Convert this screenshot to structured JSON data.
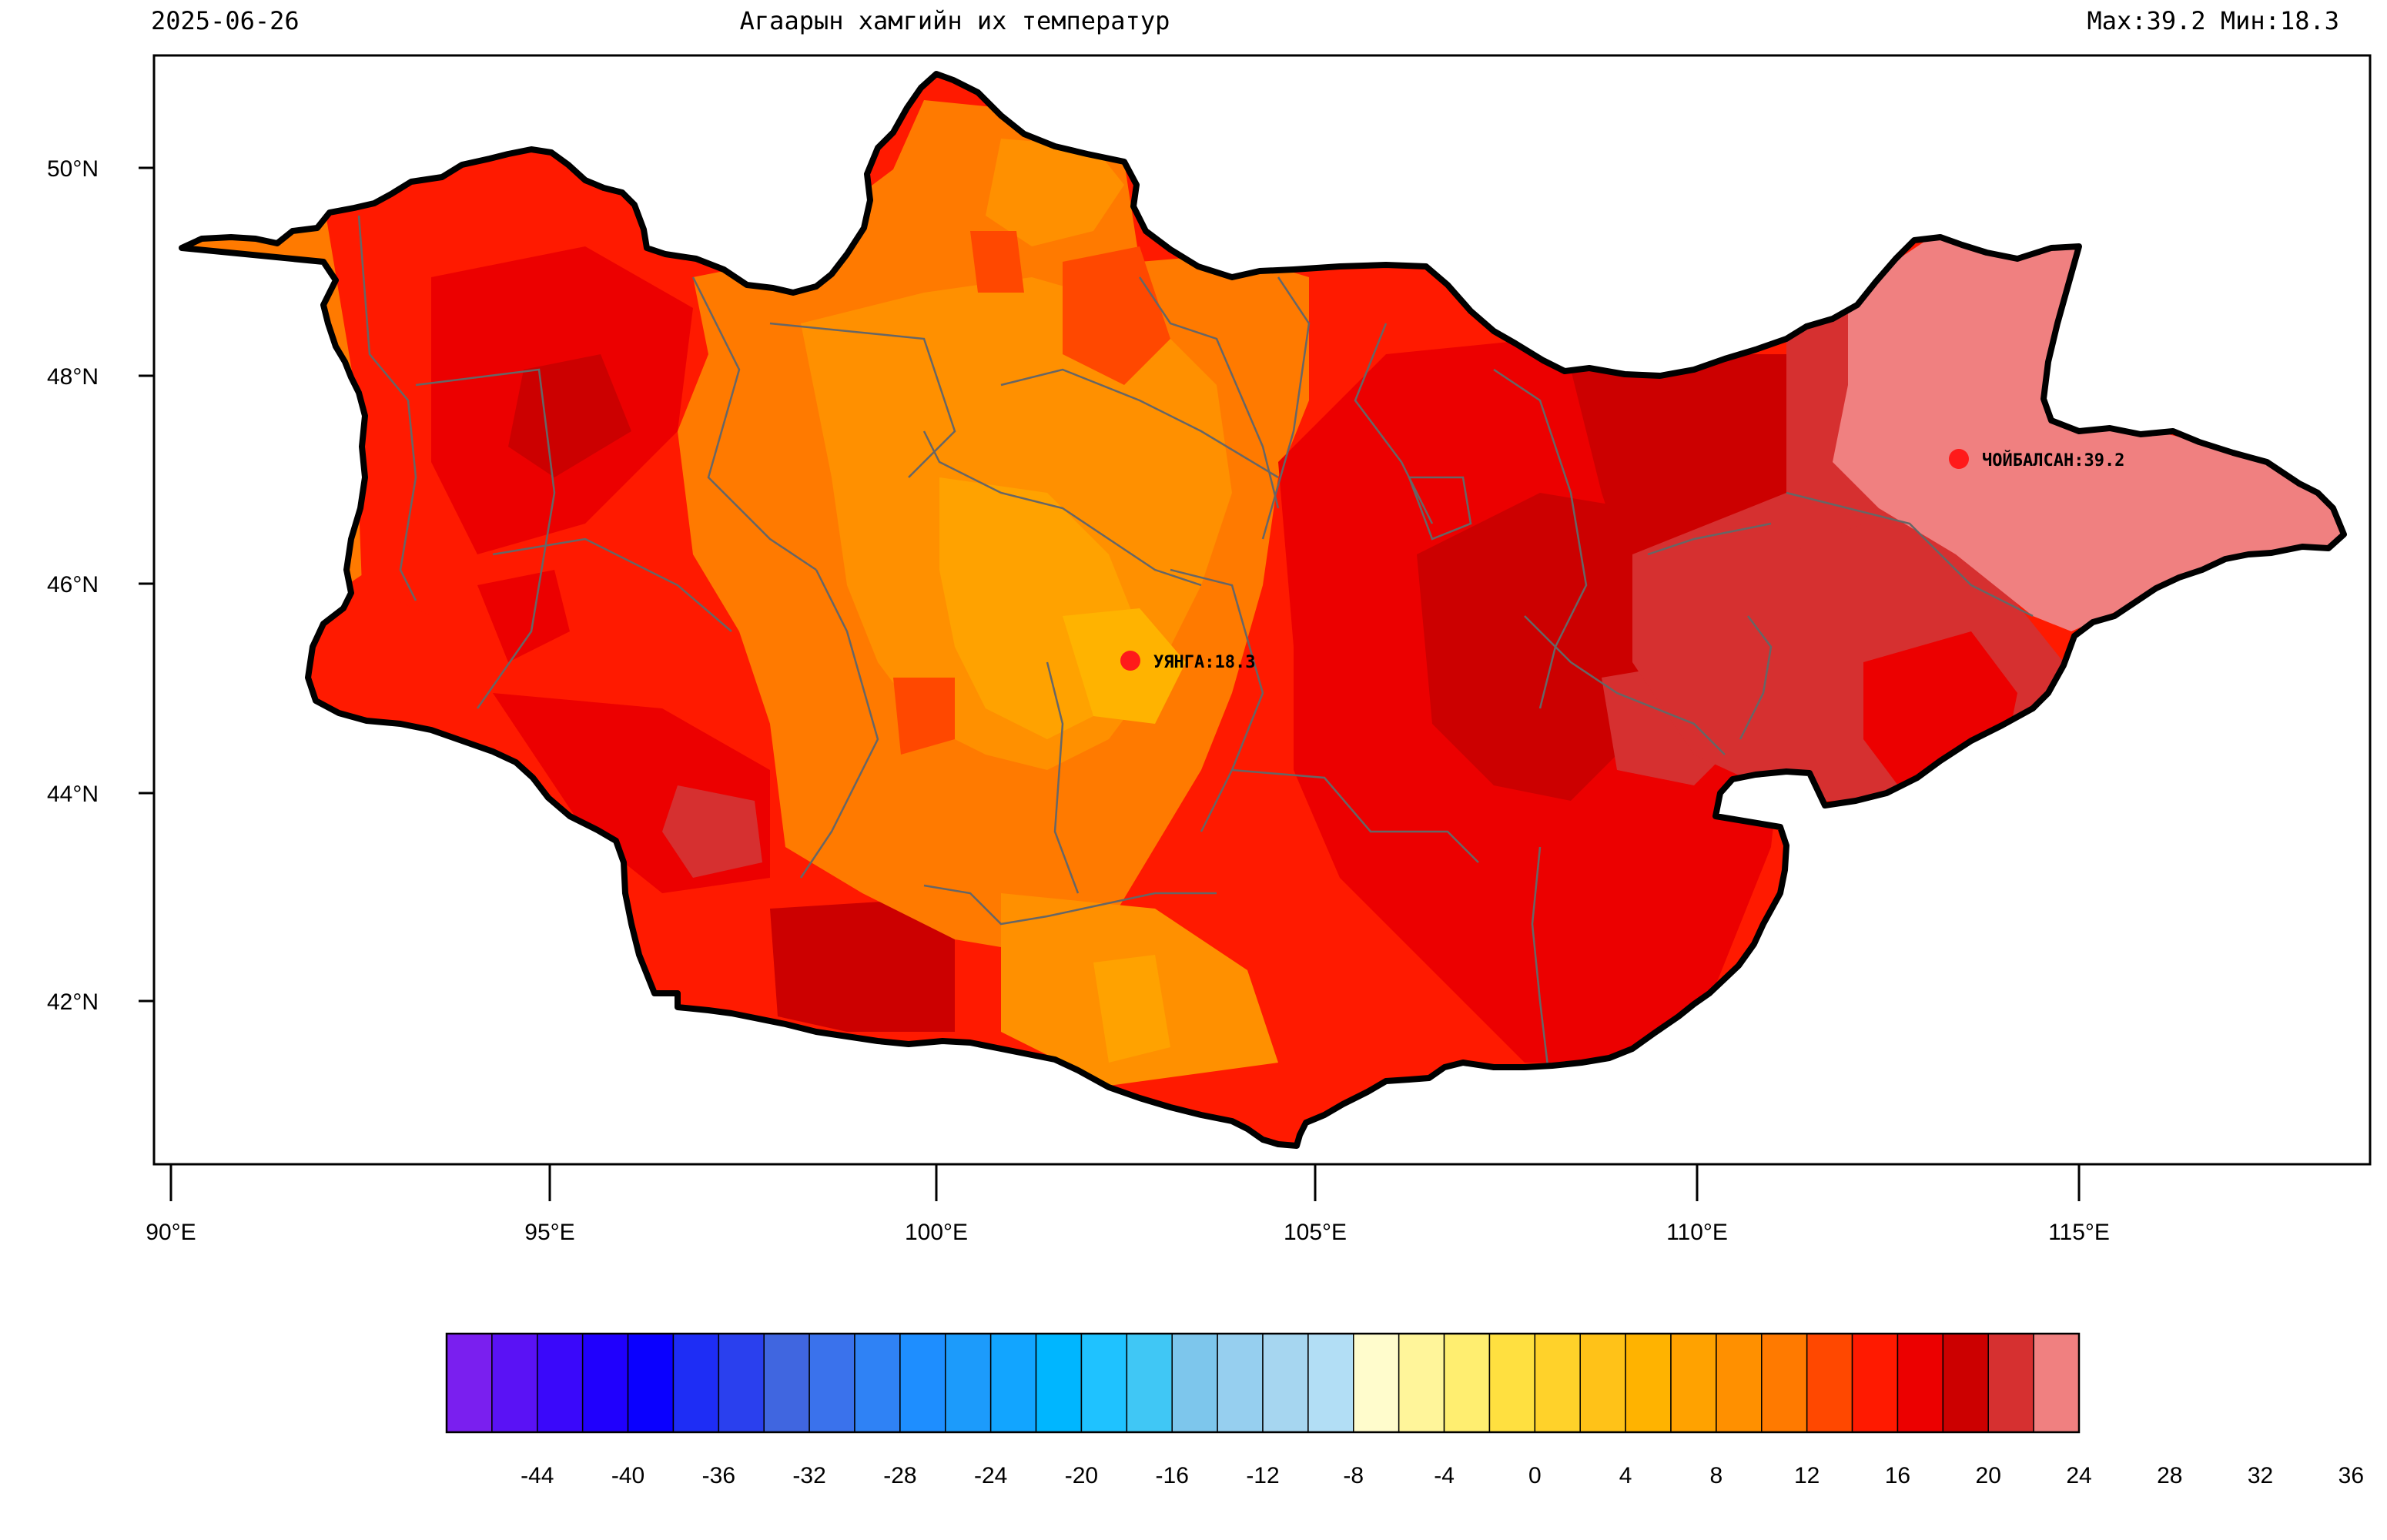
{
  "header": {
    "date": "2025-06-26",
    "title": "Агаарын хамгийн их температур",
    "range": "Max:39.2 Мин:18.3"
  },
  "map": {
    "lon_range": [
      90,
      115
    ],
    "lat_range": [
      42,
      50
    ],
    "lon_ticks": [
      "90°E",
      "95°E",
      "100°E",
      "105°E",
      "110°E",
      "115°E"
    ],
    "lat_ticks": [
      "50°N",
      "48°N",
      "46°N",
      "44°N",
      "42°N"
    ],
    "stations": [
      {
        "label": "УЯНГА:18.3",
        "color": "#ff1a1a"
      },
      {
        "label": "ЧОЙБАЛСАН:39.2",
        "color": "#ff1a1a"
      }
    ]
  },
  "colorbar": {
    "labels": [
      "-44",
      "-40",
      "-36",
      "-32",
      "-28",
      "-24",
      "-20",
      "-16",
      "-12",
      "-8",
      "-4",
      "0",
      "4",
      "8",
      "12",
      "16",
      "20",
      "24",
      "28",
      "32",
      "36"
    ],
    "colors": [
      "#7a1fef",
      "#5a12f5",
      "#3a08fa",
      "#2000fd",
      "#0a00ff",
      "#1e2df5",
      "#2a40ee",
      "#4066e0",
      "#3a72ec",
      "#2f82f5",
      "#1e8eff",
      "#1c9bfb",
      "#12a5ff",
      "#00b6ff",
      "#1fc2ff",
      "#40c7f5",
      "#7dc6ec",
      "#96cfef",
      "#a6d6f0",
      "#b2def5",
      "#fffccc",
      "#fff59a",
      "#ffee70",
      "#ffe040",
      "#ffd22a",
      "#ffc218",
      "#ffb300",
      "#ffa200",
      "#ff9000",
      "#ff7a00",
      "#ff4800",
      "#ff1a00",
      "#ec0000",
      "#cc0000",
      "#d63030",
      "#f08080"
    ]
  }
}
